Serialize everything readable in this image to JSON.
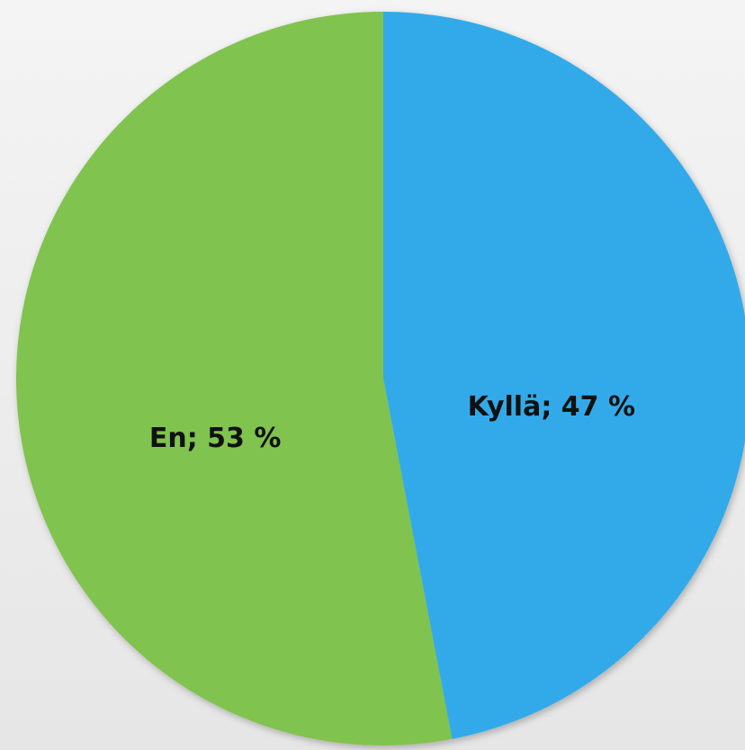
{
  "chart_data": {
    "type": "pie",
    "categories": [
      "Kyllä",
      "En"
    ],
    "values": [
      47,
      53
    ],
    "value_labels": [
      "Kyllä; 47 %",
      "En; 53 %"
    ],
    "colors": [
      "#33aaea",
      "#80c350"
    ]
  }
}
